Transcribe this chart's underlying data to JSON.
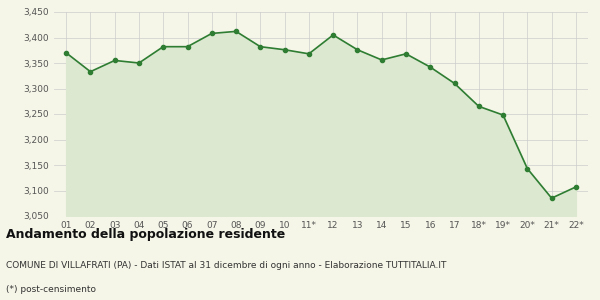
{
  "x_labels": [
    "01",
    "02",
    "03",
    "04",
    "05",
    "06",
    "07",
    "08",
    "09",
    "10",
    "11*",
    "12",
    "13",
    "14",
    "15",
    "16",
    "17",
    "18*",
    "19*",
    "20*",
    "21*",
    "22*"
  ],
  "y_values": [
    3370,
    3333,
    3355,
    3350,
    3382,
    3382,
    3408,
    3412,
    3382,
    3376,
    3368,
    3405,
    3376,
    3356,
    3368,
    3342,
    3310,
    3265,
    3248,
    3143,
    3085,
    3107
  ],
  "line_color": "#2e7d32",
  "fill_color": "#dce8d0",
  "marker": "o",
  "marker_size": 3,
  "line_width": 1.2,
  "ylim": [
    3050,
    3450
  ],
  "yticks": [
    3050,
    3100,
    3150,
    3200,
    3250,
    3300,
    3350,
    3400,
    3450
  ],
  "bg_color": "#f5f5e8",
  "grid_color": "#cccccc",
  "title": "Andamento della popolazione residente",
  "subtitle": "COMUNE DI VILLAFRATI (PA) - Dati ISTAT al 31 dicembre di ogni anno - Elaborazione TUTTITALIA.IT",
  "footnote": "(*) post-censimento",
  "title_fontsize": 9,
  "subtitle_fontsize": 6.5,
  "footnote_fontsize": 6.5,
  "tick_fontsize": 6.5
}
